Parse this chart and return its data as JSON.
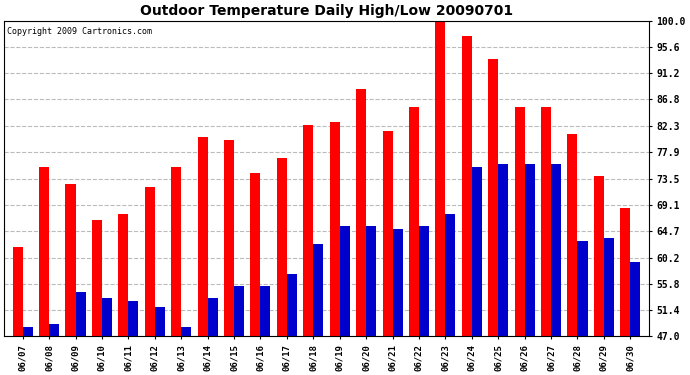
{
  "title": "Outdoor Temperature Daily High/Low 20090701",
  "copyright": "Copyright 2009 Cartronics.com",
  "dates": [
    "06/07",
    "06/08",
    "06/09",
    "06/10",
    "06/11",
    "06/12",
    "06/13",
    "06/14",
    "06/15",
    "06/16",
    "06/17",
    "06/18",
    "06/19",
    "06/20",
    "06/21",
    "06/22",
    "06/23",
    "06/24",
    "06/25",
    "06/26",
    "06/27",
    "06/28",
    "06/29",
    "06/30"
  ],
  "highs": [
    62.0,
    75.5,
    72.5,
    66.5,
    67.5,
    72.0,
    75.5,
    80.5,
    80.0,
    74.5,
    77.0,
    82.5,
    83.0,
    88.5,
    81.5,
    85.5,
    100.5,
    97.5,
    93.5,
    85.5,
    85.5,
    81.0,
    74.0,
    68.5
  ],
  "lows": [
    48.5,
    49.0,
    54.5,
    53.5,
    53.0,
    52.0,
    48.5,
    53.5,
    55.5,
    55.5,
    57.5,
    62.5,
    65.5,
    65.5,
    65.0,
    65.5,
    67.5,
    75.5,
    76.0,
    76.0,
    76.0,
    63.0,
    63.5,
    59.5
  ],
  "high_color": "#ff0000",
  "low_color": "#0000cc",
  "bg_color": "#ffffff",
  "plot_bg_color": "#ffffff",
  "grid_color": "#bbbbbb",
  "ymin": 47.0,
  "ymax": 100.0,
  "yticks": [
    47.0,
    51.4,
    55.8,
    60.2,
    64.7,
    69.1,
    73.5,
    77.9,
    82.3,
    86.8,
    91.2,
    95.6,
    100.0
  ]
}
